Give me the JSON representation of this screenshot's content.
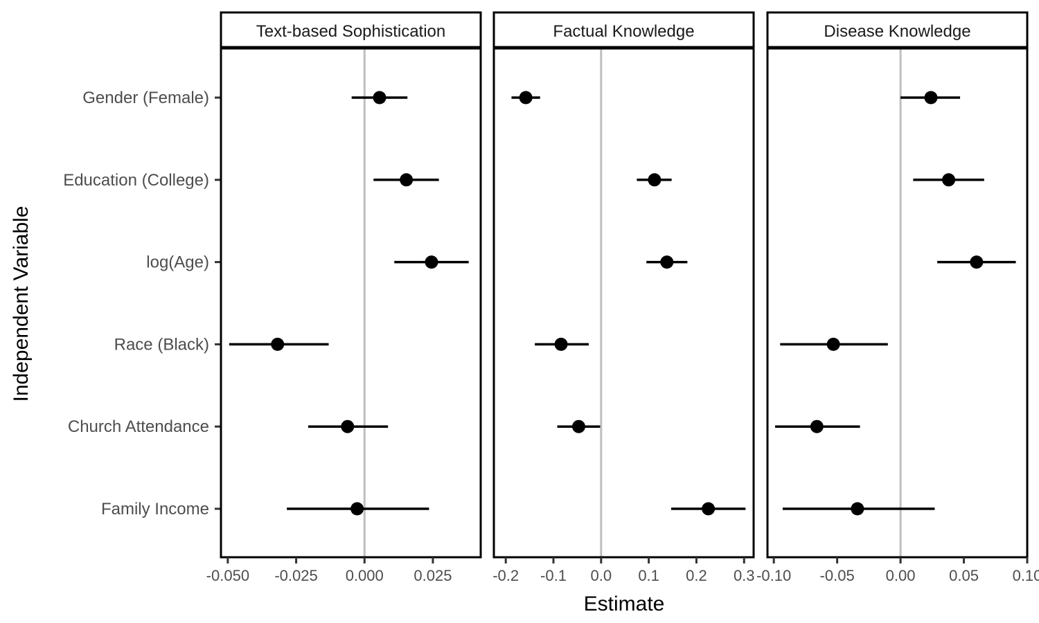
{
  "chart_data": {
    "type": "scatter",
    "subtype": "coefficient-plot",
    "xlabel": "Estimate",
    "ylabel": "Independent Variable",
    "categories": [
      "Gender (Female)",
      "Education (College)",
      "log(Age)",
      "Race (Black)",
      "Church Attendance",
      "Family Income"
    ],
    "grid": false,
    "reference_line": 0,
    "colors": {
      "point": "#000000",
      "reference_line": "#bebebe",
      "panel_border": "#000000"
    },
    "panels": [
      {
        "title": "Text-based Sophistication",
        "xlim": [
          -0.0525,
          0.0425
        ],
        "ticks": [
          -0.05,
          -0.025,
          0.0,
          0.025
        ],
        "tick_labels": [
          "-0.050",
          "-0.025",
          "0.000",
          "0.025"
        ],
        "estimates": [
          0.0055,
          0.0153,
          0.0245,
          -0.0318,
          -0.0062,
          -0.0027
        ],
        "lower": [
          -0.0047,
          0.0033,
          0.0109,
          -0.0495,
          -0.0206,
          -0.0284
        ],
        "upper": [
          0.0157,
          0.0272,
          0.0381,
          -0.0131,
          0.0086,
          0.0236
        ]
      },
      {
        "title": "Factual Knowledge",
        "xlim": [
          -0.225,
          0.32
        ],
        "ticks": [
          -0.2,
          -0.1,
          0.0,
          0.1,
          0.2,
          0.3
        ],
        "tick_labels": [
          "-0.2",
          "-0.1",
          "0.0",
          "0.1",
          "0.2",
          "0.3"
        ],
        "estimates": [
          -0.158,
          0.112,
          0.138,
          -0.084,
          -0.047,
          0.225
        ],
        "lower": [
          -0.188,
          0.075,
          0.095,
          -0.139,
          -0.092,
          0.147
        ],
        "upper": [
          -0.128,
          0.148,
          0.181,
          -0.026,
          -0.002,
          0.303
        ]
      },
      {
        "title": "Disease Knowledge",
        "xlim": [
          -0.105,
          0.1
        ],
        "ticks": [
          -0.1,
          -0.05,
          0.0,
          0.05,
          0.1
        ],
        "tick_labels": [
          "-0.10",
          "-0.05",
          "0.00",
          "0.05",
          "0.10"
        ],
        "estimates": [
          0.024,
          0.038,
          0.06,
          -0.053,
          -0.066,
          -0.034
        ],
        "lower": [
          0.0,
          0.01,
          0.029,
          -0.095,
          -0.099,
          -0.093
        ],
        "upper": [
          0.047,
          0.066,
          0.091,
          -0.01,
          -0.032,
          0.027
        ]
      }
    ]
  }
}
